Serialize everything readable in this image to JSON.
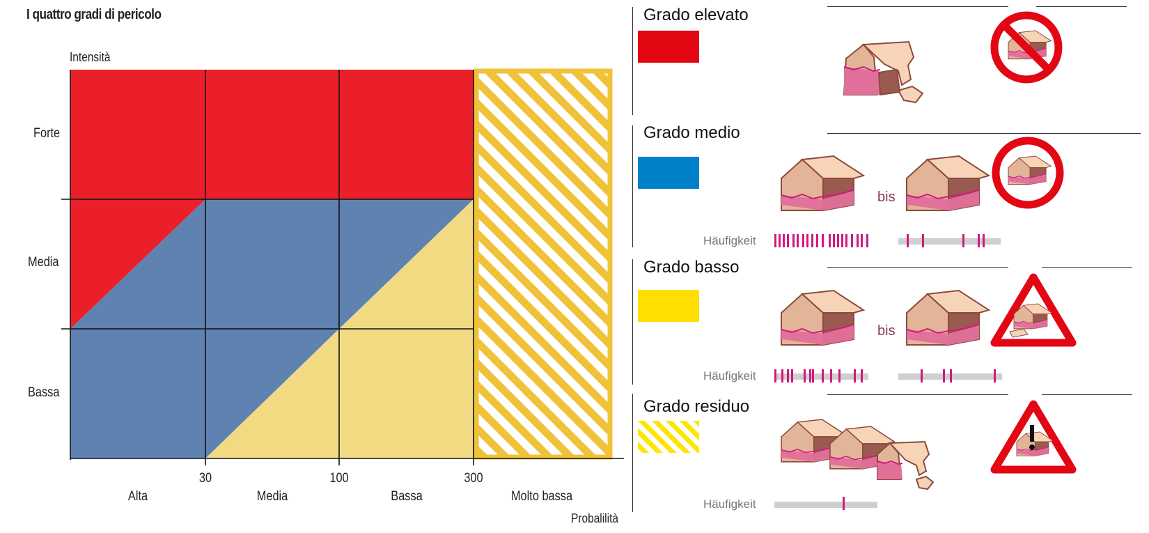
{
  "diagram": {
    "title": "I quattro gradi di pericolo",
    "y_axis_title": "Intensità",
    "y_labels": [
      "Forte",
      "Media",
      "Bassa"
    ],
    "x_ticks": [
      "30",
      "100",
      "300"
    ],
    "x_categories": [
      "Alta",
      "Media",
      "Bassa",
      "Molto bassa"
    ],
    "x_axis_title": "Probalilità",
    "colors": {
      "elevato": "#ea1f2a",
      "medio": "#5f82b0",
      "basso": "#f2da83",
      "residuo": "#f0c23a"
    }
  },
  "legend": {
    "levels": [
      {
        "title": "Grado elevato",
        "swatch_color": "#e30613",
        "sign": "prohibition-sign"
      },
      {
        "title": "Grado medio",
        "swatch_color": "#0080c8",
        "bis": "bis",
        "frequency_label": "Häufigkeit",
        "sign": "prohibition-ring-sign"
      },
      {
        "title": "Grado basso",
        "swatch_color": "#ffde00",
        "bis": "bis",
        "frequency_label": "Häufigkeit",
        "sign": "warning-sign"
      },
      {
        "title": "Grado residuo",
        "swatch_color": "#ffe500",
        "frequency_label": "Häufigkeit",
        "sign": "warning-exclamation-sign"
      }
    ],
    "accent_color": "#d0197f"
  }
}
